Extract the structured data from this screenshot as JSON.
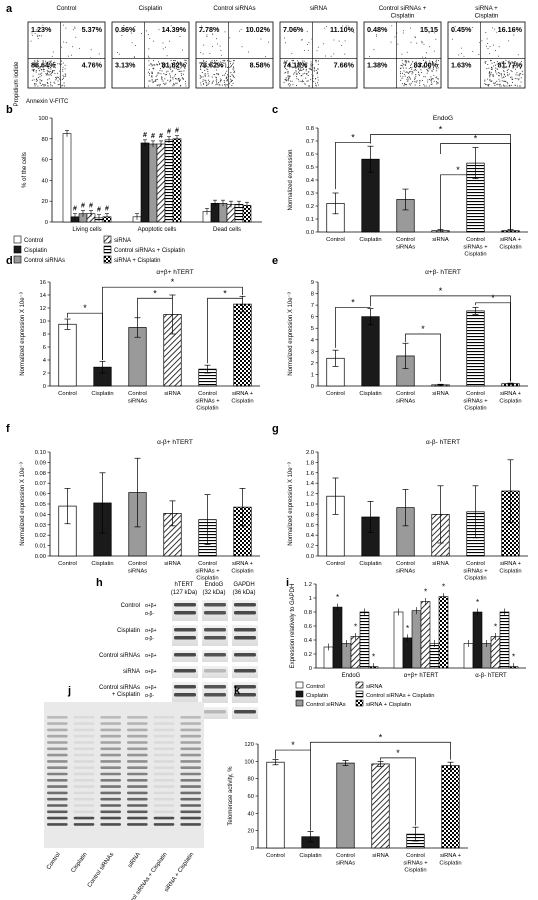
{
  "panel_labels": {
    "a": "a",
    "b": "b",
    "c": "c",
    "d": "d",
    "e": "e",
    "f": "f",
    "g": "g",
    "h": "h",
    "i": "i",
    "j": "j",
    "k": "k"
  },
  "flow_cytometry": {
    "ylabel": "Propidium iodide",
    "xlabel": "Annexin V-FITC",
    "panels": [
      {
        "title": "Control",
        "q": [
          "1.23%",
          "5.37%",
          "88.64%",
          "4.76%"
        ]
      },
      {
        "title": "Cisplatin",
        "q": [
          "0.86%",
          "14.39%",
          "3.13%",
          "81.62%"
        ]
      },
      {
        "title": "Control siRNAs",
        "q": [
          "7.78%",
          "10.02%",
          "73.62%",
          "8.58%"
        ]
      },
      {
        "title": "siRNA",
        "q": [
          "7.06%",
          "11.10%",
          "74.18%",
          "7.66%"
        ]
      },
      {
        "title": "Control siRNAs + Cisplatin",
        "q": [
          "0.48%",
          "15,15",
          "1.38%",
          "83.00%"
        ]
      },
      {
        "title": "siRNA + Cisplatin",
        "q": [
          "0.45%",
          "16.16%",
          "1.63%",
          "81.77%"
        ]
      }
    ]
  },
  "legend_b": [
    "Control",
    "siRNA",
    "Cisplatin",
    "Control siRNAs + Cisplatin",
    "Control siRNAs",
    "siRNA + Cisplatin"
  ],
  "categories6": [
    "Control",
    "Cisplatin",
    "Control siRNAs",
    "siRNA",
    "Control siRNAs + Cisplatin",
    "siRNA + Cisplatin"
  ],
  "chart_data": [
    {
      "id": "b",
      "type": "bar",
      "ylabel": "% of the cells",
      "ylim": [
        0,
        100
      ],
      "yticks": [
        0,
        20,
        40,
        60,
        80,
        100
      ],
      "categories": [
        "Living cells",
        "Apoptotic cells",
        "Dead cells"
      ],
      "series": [
        {
          "name": "Control",
          "values": [
            85,
            5,
            10
          ]
        },
        {
          "name": "Cisplatin",
          "values": [
            5,
            76,
            18
          ]
        },
        {
          "name": "Control siRNAs",
          "values": [
            8,
            75,
            18
          ]
        },
        {
          "name": "siRNA",
          "values": [
            8,
            75,
            17
          ]
        },
        {
          "name": "Control siRNAs + Cisplatin",
          "values": [
            4,
            79,
            17
          ]
        },
        {
          "name": "siRNA + Cisplatin",
          "values": [
            5,
            80,
            16
          ]
        }
      ],
      "annotations": [
        "#"
      ]
    },
    {
      "id": "c",
      "type": "bar",
      "title": "EndoG",
      "ylabel": "Normalized expression",
      "ylim": [
        0,
        0.8
      ],
      "yticks": [
        0,
        0.1,
        0.2,
        0.3,
        0.4,
        0.5,
        0.6,
        0.7,
        0.8
      ],
      "values": [
        0.22,
        0.56,
        0.25,
        0.01,
        0.53,
        0.01
      ],
      "errors": [
        0.08,
        0.1,
        0.08,
        0.01,
        0.12,
        0.01
      ]
    },
    {
      "id": "d",
      "type": "bar",
      "title": "α+β+ hTERT",
      "ylabel": "Normalized expression X 10e⁻³",
      "ylim": [
        0,
        16
      ],
      "yticks": [
        0,
        2,
        4,
        6,
        8,
        10,
        12,
        14,
        16
      ],
      "values": [
        9.5,
        2.9,
        9.0,
        11.0,
        2.6,
        12.6
      ],
      "errors": [
        0.8,
        0.9,
        1.5,
        3.0,
        0.6,
        1.2
      ]
    },
    {
      "id": "e",
      "type": "bar",
      "title": "α+β- hTERT",
      "ylabel": "Normalized expression X 10e⁻³",
      "ylim": [
        0,
        9
      ],
      "yticks": [
        0,
        1,
        2,
        3,
        4,
        5,
        6,
        7,
        8,
        9
      ],
      "values": [
        2.4,
        6.0,
        2.6,
        0.1,
        6.5,
        0.2
      ],
      "errors": [
        0.7,
        0.7,
        1.1,
        0.05,
        0.3,
        0.05
      ]
    },
    {
      "id": "f",
      "type": "bar",
      "title": "α-β+ hTERT",
      "ylabel": "Normalized expression X 10e⁻³",
      "ylim": [
        0,
        0.1
      ],
      "yticks": [
        0,
        0.01,
        0.02,
        0.03,
        0.04,
        0.05,
        0.06,
        0.07,
        0.08,
        0.09,
        0.1
      ],
      "values": [
        0.048,
        0.051,
        0.061,
        0.041,
        0.035,
        0.047
      ],
      "errors": [
        0.017,
        0.029,
        0.033,
        0.012,
        0.024,
        0.018
      ]
    },
    {
      "id": "g",
      "type": "bar",
      "title": "α-β- hTERT",
      "ylabel": "Normalized expression X 10e⁻³",
      "ylim": [
        0,
        2
      ],
      "yticks": [
        0,
        0.2,
        0.4,
        0.6,
        0.8,
        1.0,
        1.2,
        1.4,
        1.6,
        1.8,
        2.0
      ],
      "values": [
        1.15,
        0.75,
        0.93,
        0.8,
        0.85,
        1.25
      ],
      "errors": [
        0.35,
        0.3,
        0.35,
        0.55,
        0.5,
        0.6
      ]
    },
    {
      "id": "i",
      "type": "bar",
      "ylabel": "Expression relatively to GAPDH",
      "ylim": [
        0,
        1.2
      ],
      "yticks": [
        0,
        0.2,
        0.4,
        0.6,
        0.8,
        1,
        1.2
      ],
      "categories": [
        "EndoG",
        "α+β+ hTERT",
        "α-β- hTERT"
      ],
      "series": [
        {
          "name": "Control",
          "values": [
            0.3,
            0.8,
            0.35
          ]
        },
        {
          "name": "Cisplatin",
          "values": [
            0.87,
            0.43,
            0.8
          ]
        },
        {
          "name": "Control siRNAs",
          "values": [
            0.35,
            0.82,
            0.35
          ]
        },
        {
          "name": "siRNA",
          "values": [
            0.45,
            0.95,
            0.45
          ]
        },
        {
          "name": "Control siRNAs + Cisplatin",
          "values": [
            0.8,
            0.35,
            0.8
          ]
        },
        {
          "name": "siRNA + Cisplatin",
          "values": [
            0.02,
            1.02,
            0.02
          ]
        }
      ]
    },
    {
      "id": "k",
      "type": "bar",
      "ylabel": "Telomerase activity, %",
      "ylim": [
        0,
        120
      ],
      "yticks": [
        0,
        20,
        40,
        60,
        80,
        100,
        120
      ],
      "values": [
        99,
        13,
        98,
        97,
        16,
        95
      ],
      "errors": [
        3,
        6,
        3,
        3,
        8,
        4
      ]
    }
  ],
  "legend_i": [
    "Control",
    "siRNA",
    "Cisplatin",
    "Control siRNAs + Cisplatin",
    "Control siRNAs",
    "siRNA + Cisplatin"
  ],
  "western": {
    "headers": [
      "hTERT",
      "(127 kDa)",
      "EndoG",
      "(32 kDa)",
      "GAPDH",
      "(36 kDa)"
    ],
    "rows": [
      {
        "label": "Control",
        "tags": [
          "α+β+",
          "α-β-"
        ]
      },
      {
        "label": "Cisplatin",
        "tags": [
          "α+β+",
          "α-β-"
        ]
      },
      {
        "label": "Control siRNAs",
        "tags": [
          "α+β+"
        ]
      },
      {
        "label": "siRNA",
        "tags": [
          "α+β+"
        ]
      },
      {
        "label": "Control siRNAs + Cisplatin",
        "tags": [
          "α+β+",
          "α-β-"
        ]
      },
      {
        "label": "siRNA + Cisplatin",
        "tags": [
          "α+β+"
        ]
      }
    ]
  },
  "trap_lanes": [
    "Control",
    "Cisplatin",
    "Control siRNAs",
    "siRNA",
    "Control siRNAs + Cisplatin",
    "siRNA + Cisplatin"
  ],
  "colors": {
    "black": "#1a1a1a",
    "gray": "#9a9a9a",
    "white": "#ffffff"
  }
}
